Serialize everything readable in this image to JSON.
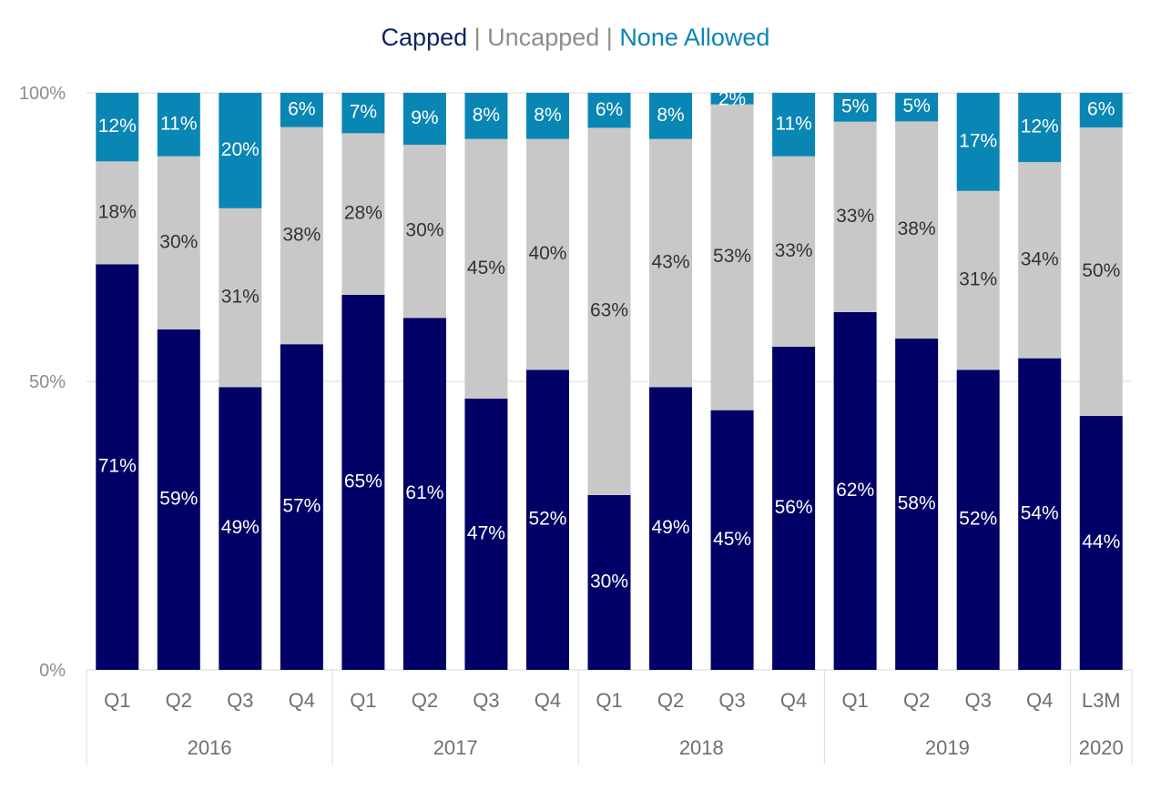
{
  "chart_data": {
    "type": "bar",
    "stacked": true,
    "title_parts": [
      {
        "text": "Capped",
        "color": "#0a2463"
      },
      {
        "text": " | ",
        "color": "#8c8c8c"
      },
      {
        "text": "Uncapped",
        "color": "#8c8c8c"
      },
      {
        "text": " | ",
        "color": "#8c8c8c"
      },
      {
        "text": "None Allowed",
        "color": "#0a86b4"
      }
    ],
    "categories": [
      "Q1",
      "Q2",
      "Q3",
      "Q4",
      "Q1",
      "Q2",
      "Q3",
      "Q4",
      "Q1",
      "Q2",
      "Q3",
      "Q4",
      "Q1",
      "Q2",
      "Q3",
      "Q4",
      "L3M"
    ],
    "groups": [
      {
        "label": "2016",
        "count": 4
      },
      {
        "label": "2017",
        "count": 4
      },
      {
        "label": "2018",
        "count": 4
      },
      {
        "label": "2019",
        "count": 4
      },
      {
        "label": "2020",
        "count": 1
      }
    ],
    "series": [
      {
        "name": "Capped",
        "color": "#000066",
        "label_color": "#ffffff",
        "values": [
          71,
          59,
          49,
          57,
          65,
          61,
          47,
          52,
          30,
          49,
          45,
          56,
          62,
          58,
          52,
          54,
          44
        ]
      },
      {
        "name": "Uncapped",
        "color": "#c8c8c8",
        "label_color": "#333333",
        "values": [
          18,
          30,
          31,
          38,
          28,
          30,
          45,
          40,
          63,
          43,
          53,
          33,
          33,
          38,
          31,
          34,
          50
        ]
      },
      {
        "name": "None Allowed",
        "color": "#0a86b4",
        "label_color": "#ffffff",
        "values": [
          12,
          11,
          20,
          6,
          7,
          9,
          8,
          8,
          6,
          8,
          2,
          11,
          5,
          5,
          17,
          12,
          6
        ]
      }
    ],
    "y_ticks": [
      "0%",
      "50%",
      "100%"
    ],
    "ylim": [
      0,
      100
    ],
    "grid": true,
    "legend": "top"
  }
}
